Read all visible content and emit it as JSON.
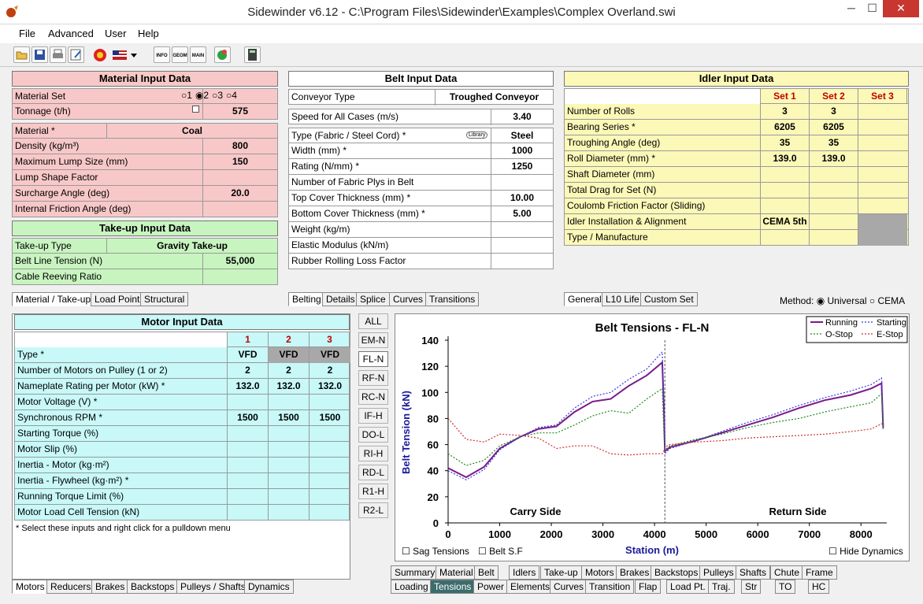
{
  "window": {
    "title": "Sidewinder v6.12 - C:\\Program Files\\Sidewinder\\Examples\\Complex Overland.swi",
    "min": "─",
    "max": "☐",
    "close": "✕"
  },
  "menu": [
    "File",
    "Advanced",
    "User",
    "Help"
  ],
  "toolbar": {
    "icons": [
      "open-icon",
      "save-icon",
      "print-icon",
      "edit-icon",
      "units-icon",
      "flag-icon",
      "dropdown-icon",
      "info-icon",
      "geometry-icon",
      "main-icon",
      "globe-icon",
      "calculator-icon"
    ],
    "info": "INFO",
    "geom": "GEOM",
    "main": "MAIN"
  },
  "material": {
    "title": "Material Input Data",
    "rows": [
      [
        "Material Set",
        ""
      ],
      [
        "Tonnage (t/h)",
        "575"
      ]
    ],
    "set_options": [
      "1",
      "2",
      "3",
      "4"
    ],
    "rows2": [
      [
        "Material *",
        "Coal"
      ],
      [
        "Density (kg/m³)",
        "800"
      ],
      [
        "Maximum Lump Size (mm)",
        "150"
      ],
      [
        "Lump Shape Factor",
        ""
      ],
      [
        "Surcharge Angle (deg)",
        "20.0"
      ],
      [
        "Internal Friction Angle (deg)",
        ""
      ]
    ]
  },
  "takeup": {
    "title": "Take-up Input Data",
    "rows": [
      [
        "Take-up Type",
        "Gravity Take-up"
      ],
      [
        "Belt Line Tension (N)",
        "55,000"
      ],
      [
        "Cable Reeving Ratio",
        ""
      ]
    ]
  },
  "left_tabs": [
    "Material / Take-up",
    "Load Point",
    "Structural"
  ],
  "belt": {
    "title": "Belt Input Data",
    "conveyor_type_label": "Conveyor Type",
    "conveyor_type": "Troughed Conveyor",
    "speed_label": "Speed for All Cases (m/s)",
    "speed": "3.40",
    "library": "Library",
    "rows": [
      [
        "Type (Fabric / Steel Cord) *",
        "Steel"
      ],
      [
        "Width (mm) *",
        "1000"
      ],
      [
        "Rating (N/mm) *",
        "1250"
      ],
      [
        "Number of Fabric Plys in Belt",
        ""
      ],
      [
        "Top Cover Thickness (mm) *",
        "10.00"
      ],
      [
        "Bottom Cover Thickness (mm) *",
        "5.00"
      ],
      [
        "Weight (kg/m)",
        ""
      ],
      [
        "Elastic Modulus (kN/m)",
        ""
      ],
      [
        "Rubber Rolling Loss Factor",
        ""
      ]
    ]
  },
  "belt_tabs": [
    "Belting",
    "Details",
    "Splice",
    "Curves",
    "Transitions"
  ],
  "idler": {
    "title": "Idler Input Data",
    "headers": [
      "Set 1",
      "Set 2",
      "Set 3"
    ],
    "rows": [
      [
        "Number of Rolls",
        "3",
        "3",
        ""
      ],
      [
        "Bearing Series *",
        "6205",
        "6205",
        ""
      ],
      [
        "Troughing Angle (deg)",
        "35",
        "35",
        ""
      ],
      [
        "Roll Diameter (mm) *",
        "139.0",
        "139.0",
        ""
      ],
      [
        "Shaft Diameter (mm)",
        "",
        "",
        ""
      ],
      [
        "Total Drag for Set (N)",
        "",
        "",
        ""
      ],
      [
        "Coulomb Friction Factor (Sliding)",
        "",
        "",
        ""
      ],
      [
        "Idler Installation & Alignment",
        "CEMA 5th",
        "",
        ""
      ],
      [
        "Type / Manufacture",
        "",
        "",
        ""
      ]
    ]
  },
  "idler_tabs": [
    "General",
    "L10 Life",
    "Custom Set"
  ],
  "method": {
    "label": "Method:",
    "options": [
      "Universal",
      "CEMA"
    ]
  },
  "motor": {
    "title": "Motor Input Data",
    "headers": [
      "1",
      "2",
      "3"
    ],
    "rows": [
      [
        "Type *",
        "VFD",
        "VFD",
        "VFD"
      ],
      [
        "Number of Motors on Pulley (1 or 2)",
        "2",
        "2",
        "2"
      ],
      [
        "Nameplate Rating per Motor (kW) *",
        "132.0",
        "132.0",
        "132.0"
      ],
      [
        "Motor Voltage (V) *",
        "",
        "",
        ""
      ],
      [
        "Synchronous RPM *",
        "1500",
        "1500",
        "1500"
      ],
      [
        "Starting Torque (%)",
        "",
        "",
        ""
      ],
      [
        "Motor Slip (%)",
        "",
        "",
        ""
      ],
      [
        "Inertia - Motor (kg·m²)",
        "",
        "",
        ""
      ],
      [
        "Inertia - Flywheel (kg·m²) *",
        "",
        "",
        ""
      ],
      [
        "Running Torque Limit (%)",
        "",
        "",
        ""
      ],
      [
        "Motor Load Cell Tension (kN)",
        "",
        "",
        ""
      ]
    ],
    "note": "* Select these inputs and right click for a pulldown menu"
  },
  "motor_tabs": [
    "Motors",
    "Reducers",
    "Brakes",
    "Backstops",
    "Pulleys / Shafts",
    "Dynamics"
  ],
  "side_buttons": [
    "ALL",
    "EM-N",
    "FL-N",
    "RF-N",
    "RC-N",
    "IF-H",
    "DO-L",
    "RI-H",
    "RD-L",
    "R1-H",
    "R2-L"
  ],
  "chart_checks": [
    "Sag Tensions",
    "Belt S.F",
    "Hide Dynamics"
  ],
  "bottom_tabs_row1": [
    "Summary",
    "Material",
    "Belt",
    "Idlers",
    "Take-up",
    "Motors",
    "Brakes",
    "Backstops",
    "Pulleys",
    "Shafts",
    "Chute",
    "Frame"
  ],
  "bottom_tabs_row2": [
    "Loading",
    "Tensions",
    "Power",
    "Elements",
    "Curves",
    "Transition",
    "Flap",
    "Load Pt.",
    "Traj.",
    "Str",
    "TO",
    "HC"
  ],
  "chart_data": {
    "type": "line",
    "title": "Belt Tensions - FL-N",
    "xlabel": "Station (m)",
    "ylabel": "Belt Tension (kN)",
    "xlim": [
      0,
      8500
    ],
    "ylim": [
      0,
      140
    ],
    "xticks": [
      0,
      1000,
      2000,
      3000,
      4000,
      5000,
      6000,
      7000,
      8000
    ],
    "yticks": [
      0,
      20,
      40,
      60,
      80,
      100,
      120,
      140
    ],
    "annotations": [
      "Carry Side",
      "Return Side"
    ],
    "colors": {
      "Running": "#7a1a8a",
      "Starting": "#3a3adc",
      "O-Stop": "#1a8a1a",
      "E-Stop": "#d03030"
    },
    "series": [
      {
        "name": "Running",
        "values": [
          [
            0,
            42
          ],
          [
            350,
            35
          ],
          [
            700,
            43
          ],
          [
            1000,
            57
          ],
          [
            1400,
            66
          ],
          [
            1750,
            72
          ],
          [
            2100,
            74
          ],
          [
            2450,
            85
          ],
          [
            2800,
            93
          ],
          [
            3150,
            95
          ],
          [
            3500,
            105
          ],
          [
            3850,
            113
          ],
          [
            4150,
            123
          ],
          [
            4180,
            90
          ],
          [
            4200,
            55
          ],
          [
            4300,
            58
          ],
          [
            4800,
            63
          ],
          [
            5300,
            69
          ],
          [
            5800,
            75
          ],
          [
            6300,
            81
          ],
          [
            6800,
            88
          ],
          [
            7300,
            94
          ],
          [
            7800,
            98
          ],
          [
            8200,
            103
          ],
          [
            8400,
            107
          ],
          [
            8430,
            73
          ]
        ]
      },
      {
        "name": "Starting",
        "values": [
          [
            0,
            40
          ],
          [
            350,
            33
          ],
          [
            700,
            41
          ],
          [
            1000,
            56
          ],
          [
            1400,
            66
          ],
          [
            1750,
            73
          ],
          [
            2100,
            75
          ],
          [
            2450,
            88
          ],
          [
            2800,
            97
          ],
          [
            3150,
            100
          ],
          [
            3500,
            110
          ],
          [
            3850,
            118
          ],
          [
            4150,
            131
          ],
          [
            4180,
            95
          ],
          [
            4200,
            53
          ],
          [
            4300,
            57
          ],
          [
            4800,
            63
          ],
          [
            5300,
            70
          ],
          [
            5800,
            77
          ],
          [
            6300,
            83
          ],
          [
            6800,
            90
          ],
          [
            7300,
            96
          ],
          [
            7800,
            101
          ],
          [
            8200,
            106
          ],
          [
            8400,
            111
          ],
          [
            8430,
            72
          ]
        ]
      },
      {
        "name": "O-Stop",
        "values": [
          [
            0,
            53
          ],
          [
            350,
            44
          ],
          [
            700,
            48
          ],
          [
            1000,
            59
          ],
          [
            1400,
            66
          ],
          [
            1750,
            69
          ],
          [
            2100,
            69
          ],
          [
            2450,
            75
          ],
          [
            2800,
            82
          ],
          [
            3150,
            86
          ],
          [
            3500,
            84
          ],
          [
            3850,
            95
          ],
          [
            4150,
            103
          ],
          [
            4180,
            70
          ],
          [
            4200,
            56
          ],
          [
            4300,
            59
          ],
          [
            4800,
            64
          ],
          [
            5300,
            68
          ],
          [
            5800,
            73
          ],
          [
            6300,
            77
          ],
          [
            6800,
            80
          ],
          [
            7300,
            85
          ],
          [
            7800,
            89
          ],
          [
            8200,
            92
          ],
          [
            8400,
            99
          ],
          [
            8430,
            71
          ]
        ]
      },
      {
        "name": "E-Stop",
        "values": [
          [
            0,
            80
          ],
          [
            350,
            64
          ],
          [
            700,
            62
          ],
          [
            1000,
            68
          ],
          [
            1400,
            67
          ],
          [
            1750,
            65
          ],
          [
            2100,
            57
          ],
          [
            2450,
            59
          ],
          [
            2800,
            59
          ],
          [
            3150,
            53
          ],
          [
            3500,
            52
          ],
          [
            3850,
            53
          ],
          [
            4150,
            53
          ],
          [
            4180,
            55
          ],
          [
            4200,
            58
          ],
          [
            4300,
            60
          ],
          [
            4800,
            62
          ],
          [
            5300,
            63
          ],
          [
            5800,
            65
          ],
          [
            6300,
            66
          ],
          [
            6800,
            67
          ],
          [
            7300,
            68
          ],
          [
            7800,
            70
          ],
          [
            8200,
            72
          ],
          [
            8400,
            76
          ],
          [
            8430,
            75
          ]
        ]
      }
    ]
  }
}
